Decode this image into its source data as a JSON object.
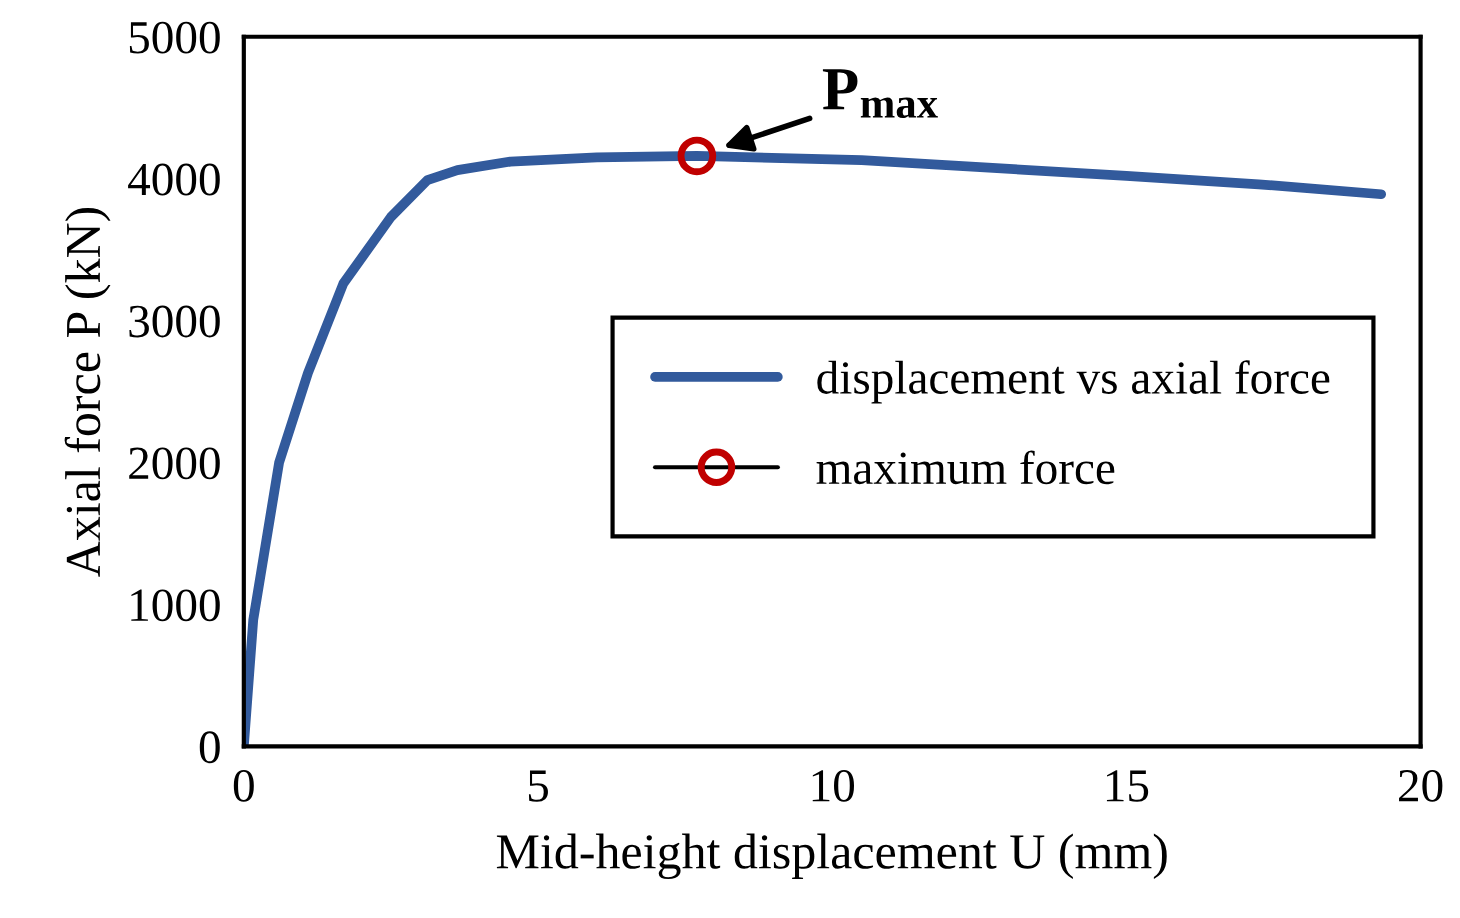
{
  "chart_data": {
    "type": "line",
    "xlabel": "Mid-height displacement U (mm)",
    "ylabel": "Axial force P (kN)",
    "xlim": [
      0,
      20
    ],
    "xticks": [
      0,
      5,
      10,
      15,
      20
    ],
    "ylim": [
      0,
      5000
    ],
    "yticks": [
      0,
      1000,
      2000,
      3000,
      4000,
      5000
    ],
    "grid": false,
    "legend": "right",
    "series": [
      {
        "name": "displacement vs axial force",
        "color": "#325a9c",
        "marker": "none",
        "x": [
          0,
          0.16,
          0.6,
          1.09,
          1.69,
          2.5,
          3.12,
          3.63,
          4.53,
          6.0,
          7.7,
          10.5,
          15.0,
          17.25,
          19.33
        ],
        "values": [
          0,
          890,
          2000,
          2630,
          3260,
          3730,
          3990,
          4060,
          4120,
          4150,
          4160,
          4130,
          4020,
          3960,
          3890
        ]
      },
      {
        "name": "maximum force",
        "type": "scatter",
        "color": "#c00000",
        "marker": "circle",
        "x": [
          7.7
        ],
        "values": [
          4160
        ]
      }
    ],
    "annotations": [
      {
        "text": "P$_{max}$",
        "x": 7.7,
        "y": 4160
      }
    ]
  }
}
